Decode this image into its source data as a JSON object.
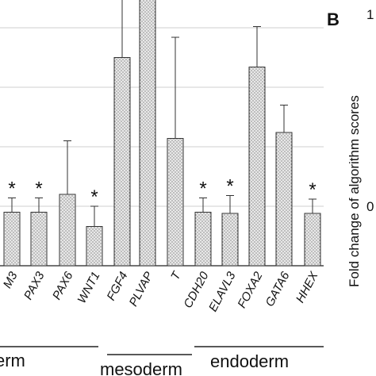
{
  "chart_data": {
    "type": "bar",
    "categories": [
      "M3",
      "PAX3",
      "PAX6",
      "WNT1",
      "FGF4",
      "PLVAP",
      "T",
      "CDH20",
      "ELAVL3",
      "FOXA2",
      "GATA6",
      "HHEX"
    ],
    "values": [
      0.45,
      0.45,
      0.6,
      0.33,
      1.75,
      2.59,
      1.07,
      0.45,
      0.44,
      1.67,
      1.12,
      0.44
    ],
    "errors": [
      0.12,
      0.12,
      0.45,
      0.17,
      1.0,
      0.39,
      0.85,
      0.12,
      0.15,
      0.34,
      0.23,
      0.12
    ],
    "significant": [
      true,
      true,
      false,
      true,
      false,
      true,
      false,
      true,
      true,
      false,
      false,
      true
    ],
    "significance_marker": "*",
    "ylim": [
      0,
      3.0
    ],
    "groups": [
      {
        "label": "erm",
        "categories": [
          "M3",
          "PAX3",
          "PAX6",
          "WNT1"
        ]
      },
      {
        "label": "mesoderm",
        "categories": [
          "FGF4",
          "PLVAP",
          "T"
        ]
      },
      {
        "label": "endoderm",
        "categories": [
          "CDH20",
          "ELAVL3",
          "FOXA2",
          "GATA6",
          "HHEX"
        ]
      }
    ],
    "grid": "horizontal",
    "bar_color": "#e6e6e6"
  },
  "panel_b": {
    "letter": "B",
    "ylabel": "Fold change of algorithm scores",
    "tick_top": "1",
    "tick_mid": "0"
  }
}
